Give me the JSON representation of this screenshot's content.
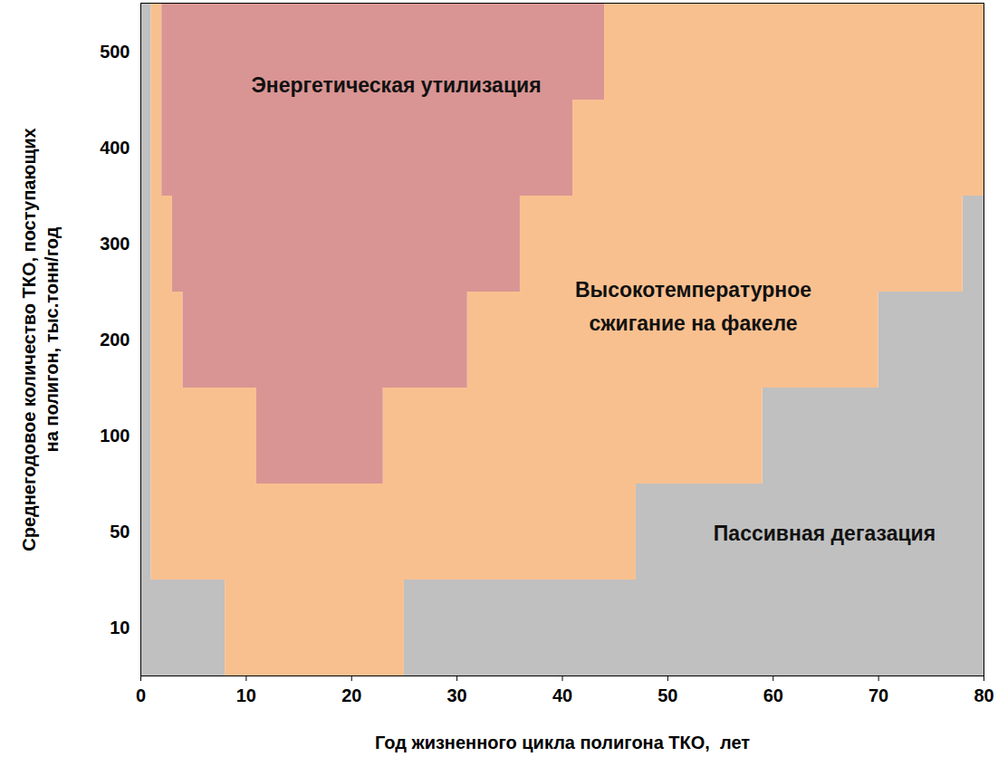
{
  "chart_data": {
    "type": "region_map",
    "x_label": "Год жизненного цикла полигона ТКО,  лет",
    "y_label": "Среднегодовое количество ТКО, поступающих\nна полигон, тыс.тонн/год",
    "xlim": [
      0,
      80
    ],
    "xticks": [
      0,
      10,
      20,
      30,
      40,
      50,
      60,
      70,
      80
    ],
    "categories": [
      10,
      50,
      100,
      200,
      300,
      400,
      500
    ],
    "grid": false,
    "series": [
      {
        "name": "Пассивная дегазация",
        "color": "#c0c0c0",
        "values": [
          [
            [
              0,
              8
            ],
            [
              25,
              80
            ]
          ],
          [
            [
              0,
              1
            ],
            [
              47,
              80
            ]
          ],
          [
            [
              0,
              1
            ],
            [
              59,
              80
            ]
          ],
          [
            [
              0,
              1
            ],
            [
              70,
              80
            ]
          ],
          [
            [
              0,
              1
            ],
            [
              78,
              80
            ]
          ],
          [
            [
              0,
              1
            ]
          ],
          [
            [
              0,
              1
            ]
          ]
        ]
      },
      {
        "name": "Высокотемпературное\nсжигание на факеле",
        "color": "#f9c08f",
        "values": [
          [
            [
              8,
              25
            ]
          ],
          [
            [
              1,
              47
            ]
          ],
          [
            [
              1,
              11
            ],
            [
              23,
              59
            ]
          ],
          [
            [
              1,
              4
            ],
            [
              31,
              70
            ]
          ],
          [
            [
              1,
              3
            ],
            [
              36,
              78
            ]
          ],
          [
            [
              1,
              2
            ],
            [
              41,
              80
            ]
          ],
          [
            [
              1,
              2
            ],
            [
              44,
              80
            ]
          ]
        ]
      },
      {
        "name": "Энергетическая утилизация",
        "color": "#d99594",
        "values": [
          [],
          [],
          [
            [
              11,
              23
            ]
          ],
          [
            [
              4,
              31
            ]
          ],
          [
            [
              3,
              36
            ]
          ],
          [
            [
              2,
              41
            ]
          ],
          [
            [
              2,
              44
            ]
          ]
        ]
      }
    ]
  }
}
